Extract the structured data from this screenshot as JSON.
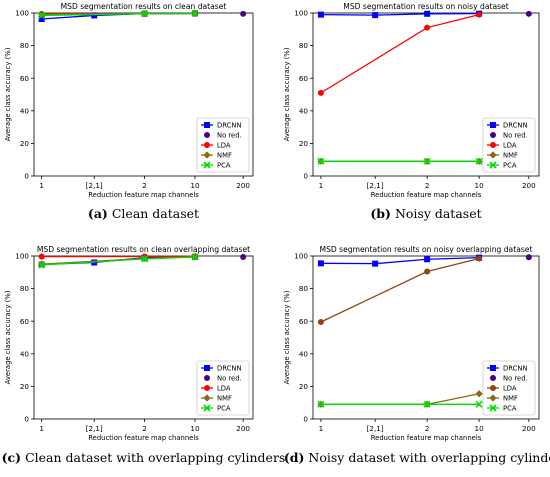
{
  "chart_data": [
    {
      "type": "line",
      "title": "MSD segmentation results on clean dataset",
      "xlabel": "Reduction feature map channels",
      "ylabel": "Average class accuracy (%)",
      "categories": [
        "1",
        "[2,1]",
        "2",
        "10",
        "200"
      ],
      "ylim": [
        0,
        100
      ],
      "yticks": [
        0,
        20,
        40,
        60,
        80,
        100
      ],
      "legend_position": "lower-right",
      "caption_label": "(a)",
      "caption_text": "Clean dataset",
      "series": [
        {
          "name": "DRCNN",
          "color": "#0000ff",
          "marker": "square",
          "values": [
            96.3,
            98.5,
            99.6,
            99.8,
            null
          ]
        },
        {
          "name": "No red.",
          "color": "#4b0082",
          "marker": "circle",
          "values": [
            null,
            null,
            null,
            null,
            99.5
          ]
        },
        {
          "name": "LDA",
          "color": "#ff0000",
          "marker": "circle",
          "values": [
            99.5,
            null,
            99.6,
            99.7,
            null
          ]
        },
        {
          "name": "NMF",
          "color": "#8b6914",
          "marker": "diamond",
          "values": [
            99.2,
            null,
            99.5,
            99.6,
            null
          ]
        },
        {
          "name": "PCA",
          "color": "#00dd00",
          "marker": "cross",
          "values": [
            98.5,
            null,
            99.6,
            99.7,
            null
          ]
        }
      ]
    },
    {
      "type": "line",
      "title": "MSD segmentation results on noisy dataset",
      "xlabel": "Reduction feature map channels",
      "ylabel": "Average class accuracy (%)",
      "categories": [
        "1",
        "[2,1]",
        "2",
        "10",
        "200"
      ],
      "ylim": [
        0,
        100
      ],
      "yticks": [
        0,
        20,
        40,
        60,
        80,
        100
      ],
      "legend_position": "lower-right",
      "caption_label": "(b)",
      "caption_text": "Noisy dataset",
      "series": [
        {
          "name": "DRCNN",
          "color": "#0000ff",
          "marker": "square",
          "values": [
            99.0,
            98.7,
            99.5,
            99.6,
            null
          ]
        },
        {
          "name": "No red.",
          "color": "#4b0082",
          "marker": "circle",
          "values": [
            null,
            null,
            null,
            null,
            99.5
          ]
        },
        {
          "name": "LDA",
          "color": "#ff0000",
          "marker": "circle",
          "values": [
            51.0,
            null,
            91.0,
            99.0,
            null
          ]
        },
        {
          "name": "NMF",
          "color": "#8b6914",
          "marker": "diamond",
          "values": [
            9.0,
            null,
            9.0,
            9.0,
            null
          ]
        },
        {
          "name": "PCA",
          "color": "#00dd00",
          "marker": "cross",
          "values": [
            9.0,
            null,
            9.0,
            9.0,
            null
          ]
        }
      ]
    },
    {
      "type": "line",
      "title": "MSD segmentation results on clean overlapping dataset",
      "xlabel": "Reduction feature map channels",
      "ylabel": "Average class accuracy (%)",
      "categories": [
        "1",
        "[2,1]",
        "2",
        "10",
        "200"
      ],
      "ylim": [
        0,
        100
      ],
      "yticks": [
        0,
        20,
        40,
        60,
        80,
        100
      ],
      "legend_position": "lower-right",
      "caption_label": "(c)",
      "caption_text": "Clean dataset with overlapping cylinders",
      "series": [
        {
          "name": "DRCNN",
          "color": "#0000ff",
          "marker": "square",
          "values": [
            94.8,
            96.0,
            99.0,
            99.5,
            null
          ]
        },
        {
          "name": "No red.",
          "color": "#4b0082",
          "marker": "circle",
          "values": [
            null,
            null,
            null,
            null,
            99.4
          ]
        },
        {
          "name": "LDA",
          "color": "#ff0000",
          "marker": "circle",
          "values": [
            99.6,
            null,
            99.7,
            99.8,
            null
          ]
        },
        {
          "name": "NMF",
          "color": "#8b6914",
          "marker": "diamond",
          "values": [
            95.0,
            null,
            98.5,
            99.5,
            null
          ]
        },
        {
          "name": "PCA",
          "color": "#00dd00",
          "marker": "cross",
          "values": [
            94.5,
            null,
            98.2,
            99.4,
            null
          ]
        }
      ]
    },
    {
      "type": "line",
      "title": "MSD segmentation results on noisy overlapping dataset",
      "xlabel": "Reduction feature map channels",
      "ylabel": "Average class accuracy (%)",
      "categories": [
        "1",
        "[2,1]",
        "2",
        "10",
        "200"
      ],
      "ylim": [
        0,
        100
      ],
      "yticks": [
        0,
        20,
        40,
        60,
        80,
        100
      ],
      "legend_position": "lower-right",
      "caption_label": "(d)",
      "caption_text": "Noisy dataset with overlapping cylinders",
      "series": [
        {
          "name": "DRCNN",
          "color": "#0000ff",
          "marker": "square",
          "values": [
            95.5,
            95.3,
            98.0,
            99.0,
            null
          ]
        },
        {
          "name": "No red.",
          "color": "#4b0082",
          "marker": "circle",
          "values": [
            null,
            null,
            null,
            null,
            99.2
          ]
        },
        {
          "name": "LDA",
          "color": "#8b4513",
          "marker": "circle",
          "values": [
            59.5,
            null,
            90.5,
            98.5,
            null
          ]
        },
        {
          "name": "NMF",
          "color": "#8b6914",
          "marker": "diamond",
          "values": [
            9.0,
            null,
            9.0,
            15.5,
            null
          ]
        },
        {
          "name": "PCA",
          "color": "#00dd00",
          "marker": "cross",
          "values": [
            9.0,
            null,
            9.0,
            9.0,
            null
          ]
        }
      ]
    }
  ]
}
